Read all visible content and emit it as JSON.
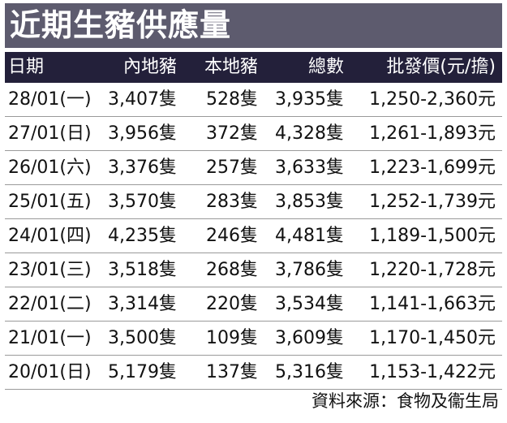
{
  "title": "近期生豬供應量",
  "headers": [
    "日期",
    "內地豬",
    "本地豬",
    "總數",
    "批發價(元/擔)"
  ],
  "rows": [
    {
      "date": "28/01(一)",
      "mainland": "3,407隻",
      "local": "528隻",
      "total": "3,935隻",
      "price": "1,250-2,360元"
    },
    {
      "date": "27/01(日)",
      "mainland": "3,956隻",
      "local": "372隻",
      "total": "4,328隻",
      "price": "1,261-1,893元"
    },
    {
      "date": "26/01(六)",
      "mainland": "3,376隻",
      "local": "257隻",
      "total": "3,633隻",
      "price": "1,223-1,699元"
    },
    {
      "date": "25/01(五)",
      "mainland": "3,570隻",
      "local": "283隻",
      "total": "3,853隻",
      "price": "1,252-1,739元"
    },
    {
      "date": "24/01(四)",
      "mainland": "4,235隻",
      "local": "246隻",
      "total": "4,481隻",
      "price": "1,189-1,500元"
    },
    {
      "date": "23/01(三)",
      "mainland": "3,518隻",
      "local": "268隻",
      "total": "3,786隻",
      "price": "1,220-1,728元"
    },
    {
      "date": "22/01(二)",
      "mainland": "3,314隻",
      "local": "220隻",
      "total": "3,534隻",
      "price": "1,141-1,663元"
    },
    {
      "date": "21/01(一)",
      "mainland": "3,500隻",
      "local": "109隻",
      "total": "3,609隻",
      "price": "1,170-1,450元"
    },
    {
      "date": "20/01(日)",
      "mainland": "5,179隻",
      "local": "137隻",
      "total": "5,316隻",
      "price": "1,153-1,422元"
    }
  ],
  "source": "資料來源：食物及衞生局",
  "colors": {
    "title_bg": "#5d5b6e",
    "header_bg": "#23203a",
    "divider": "#9a9a9a"
  }
}
